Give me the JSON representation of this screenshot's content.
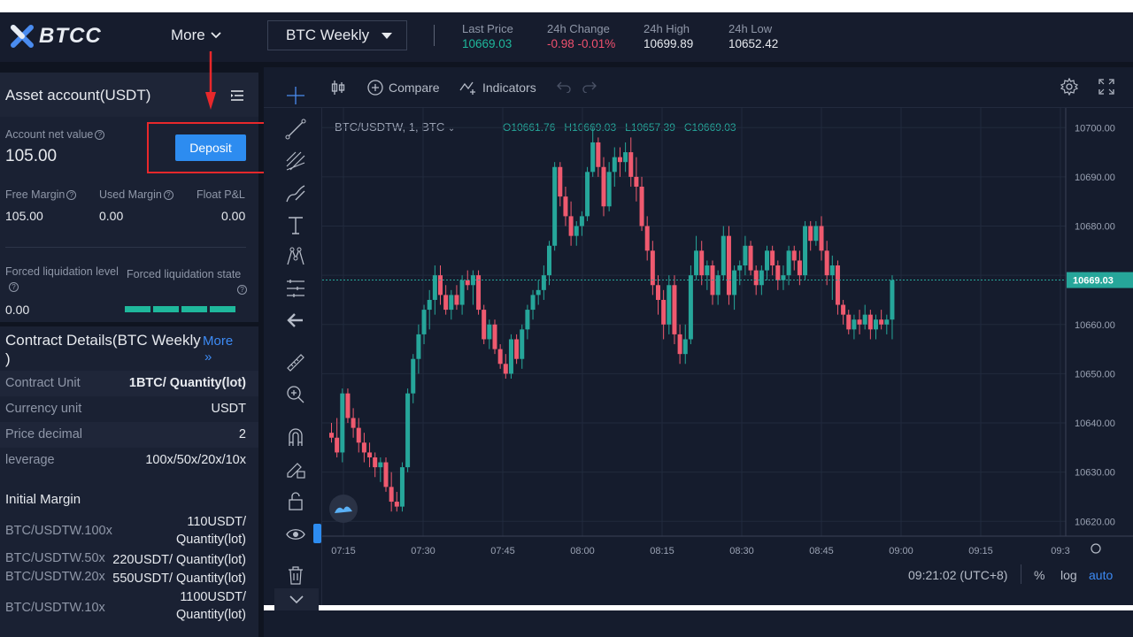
{
  "header": {
    "logo_text": "BTCC",
    "more_label": "More",
    "symbol": "BTC Weekly",
    "stats": [
      {
        "label": "Last Price",
        "value": "10669.03",
        "color": "#1fb89c"
      },
      {
        "label": "24h Change",
        "value": "-0.98 -0.01%",
        "color": "#f0506e"
      },
      {
        "label": "24h High",
        "value": "10699.89",
        "color": "#e6e9ee"
      },
      {
        "label": "24h Low",
        "value": "10652.42",
        "color": "#e6e9ee"
      }
    ]
  },
  "asset": {
    "title": "Asset account(USDT)",
    "net_value_label": "Account net value",
    "net_value": "105.00",
    "deposit_label": "Deposit",
    "free_margin_label": "Free Margin",
    "free_margin": "105.00",
    "used_margin_label": "Used Margin",
    "used_margin": "0.00",
    "float_pl_label": "Float P&L",
    "float_pl": "0.00",
    "forced_level_label": "Forced liquidation level",
    "forced_level": "0.00",
    "forced_state_label": "Forced liquidation state"
  },
  "contract": {
    "title": "Contract Details(BTC Weekly )",
    "more_label": "More",
    "rows": [
      {
        "k": "Contract Unit",
        "v": "1BTC/ Quantity(lot)"
      },
      {
        "k": "Currency unit",
        "v": "USDT"
      },
      {
        "k": "Price decimal",
        "v": "2"
      },
      {
        "k": "leverage",
        "v": "100x/50x/20x/10x"
      }
    ],
    "initial_margin_title": "Initial Margin",
    "margins": [
      {
        "k": "BTC/USDTW.100x",
        "v1": "110USDT/",
        "v2": "Quantity(lot)"
      },
      {
        "k": "BTC/USDTW.50x",
        "v1": "220USDT/ Quantity(lot)",
        "v2": ""
      },
      {
        "k": "BTC/USDTW.20x",
        "v1": "550USDT/ Quantity(lot)",
        "v2": ""
      },
      {
        "k": "BTC/USDTW.10x",
        "v1": "1100USDT/",
        "v2": "Quantity(lot)"
      }
    ]
  },
  "chart_toolbar": {
    "compare_label": "Compare",
    "indicators_label": "Indicators"
  },
  "chart_legend": {
    "symbol_label": "BTC/USDTW, 1, BTC",
    "open": "O10661.76",
    "high": "H10669.03",
    "low": "L10657.39",
    "close": "C10669.03"
  },
  "chart_footer": {
    "time": "09:21:02 (UTC+8)",
    "pct": "%",
    "log": "log",
    "auto": "auto"
  },
  "chart_data": {
    "type": "candlestick",
    "y_ticks": [
      "10700.00",
      "10690.00",
      "10680.00",
      "10670.00",
      "10660.00",
      "10650.00",
      "10640.00",
      "10630.00",
      "10620.00"
    ],
    "x_ticks": [
      "07:15",
      "07:30",
      "07:45",
      "08:00",
      "08:15",
      "08:30",
      "08:45",
      "09:00",
      "09:15",
      "09:3"
    ],
    "ylim": [
      10617,
      10704
    ],
    "last_price": "10669.03",
    "up_color": "#26a69a",
    "down_color": "#ef5a6f",
    "candles": [
      [
        10638,
        10640,
        10636,
        10637
      ],
      [
        10637,
        10641,
        10633,
        10634
      ],
      [
        10634,
        10647,
        10632,
        10646
      ],
      [
        10646,
        10647,
        10640,
        10641
      ],
      [
        10641,
        10643,
        10637,
        10639
      ],
      [
        10639,
        10641,
        10634,
        10636
      ],
      [
        10636,
        10638,
        10632,
        10634
      ],
      [
        10634,
        10636,
        10631,
        10633
      ],
      [
        10633,
        10634,
        10629,
        10631
      ],
      [
        10631,
        10633,
        10628,
        10632
      ],
      [
        10632,
        10633,
        10626,
        10627
      ],
      [
        10627,
        10630,
        10622,
        10624
      ],
      [
        10624,
        10626,
        10622,
        10623
      ],
      [
        10623,
        10632,
        10622,
        10631
      ],
      [
        10631,
        10647,
        10630,
        10646
      ],
      [
        10646,
        10654,
        10644,
        10653
      ],
      [
        10653,
        10660,
        10650,
        10658
      ],
      [
        10658,
        10664,
        10656,
        10663
      ],
      [
        10663,
        10667,
        10659,
        10665
      ],
      [
        10665,
        10672,
        10662,
        10670
      ],
      [
        10670,
        10672,
        10664,
        10666
      ],
      [
        10666,
        10668,
        10662,
        10663
      ],
      [
        10663,
        10667,
        10661,
        10666
      ],
      [
        10666,
        10668,
        10663,
        10664
      ],
      [
        10664,
        10670,
        10662,
        10669
      ],
      [
        10669,
        10671,
        10667,
        10668
      ],
      [
        10668,
        10671,
        10664,
        10670
      ],
      [
        10670,
        10671,
        10662,
        10663
      ],
      [
        10663,
        10664,
        10656,
        10657
      ],
      [
        10657,
        10661,
        10655,
        10660
      ],
      [
        10660,
        10661,
        10654,
        10655
      ],
      [
        10655,
        10656,
        10651,
        10652
      ],
      [
        10652,
        10654,
        10649,
        10650
      ],
      [
        10650,
        10658,
        10649,
        10657
      ],
      [
        10657,
        10658,
        10652,
        10653
      ],
      [
        10653,
        10660,
        10651,
        10659
      ],
      [
        10659,
        10664,
        10657,
        10663
      ],
      [
        10663,
        10667,
        10661,
        10666
      ],
      [
        10666,
        10669,
        10664,
        10667
      ],
      [
        10667,
        10672,
        10665,
        10670
      ],
      [
        10670,
        10677,
        10668,
        10676
      ],
      [
        10676,
        10693,
        10675,
        10692
      ],
      [
        10692,
        10693,
        10684,
        10686
      ],
      [
        10686,
        10688,
        10680,
        10682
      ],
      [
        10682,
        10685,
        10676,
        10678
      ],
      [
        10678,
        10681,
        10676,
        10680
      ],
      [
        10680,
        10683,
        10678,
        10682
      ],
      [
        10682,
        10692,
        10681,
        10691
      ],
      [
        10691,
        10700,
        10690,
        10697
      ],
      [
        10697,
        10698,
        10690,
        10692
      ],
      [
        10692,
        10694,
        10682,
        10684
      ],
      [
        10684,
        10693,
        10683,
        10691
      ],
      [
        10691,
        10696,
        10688,
        10694
      ],
      [
        10694,
        10696,
        10690,
        10693
      ],
      [
        10693,
        10697,
        10691,
        10695
      ],
      [
        10695,
        10698,
        10688,
        10690
      ],
      [
        10690,
        10694,
        10685,
        10688
      ],
      [
        10688,
        10690,
        10679,
        10680
      ],
      [
        10680,
        10682,
        10673,
        10675
      ],
      [
        10675,
        10677,
        10666,
        10668
      ],
      [
        10668,
        10670,
        10662,
        10665
      ],
      [
        10665,
        10667,
        10657,
        10660
      ],
      [
        10660,
        10670,
        10658,
        10668
      ],
      [
        10668,
        10670,
        10656,
        10658
      ],
      [
        10658,
        10660,
        10652,
        10654
      ],
      [
        10654,
        10660,
        10652,
        10657
      ],
      [
        10657,
        10672,
        10656,
        10670
      ],
      [
        10670,
        10678,
        10669,
        10675
      ],
      [
        10675,
        10677,
        10668,
        10670
      ],
      [
        10670,
        10673,
        10667,
        10672
      ],
      [
        10672,
        10673,
        10664,
        10666
      ],
      [
        10666,
        10671,
        10664,
        10670
      ],
      [
        10670,
        10680,
        10669,
        10678
      ],
      [
        10678,
        10680,
        10664,
        10666
      ],
      [
        10666,
        10672,
        10663,
        10671
      ],
      [
        10671,
        10673,
        10668,
        10672
      ],
      [
        10672,
        10678,
        10670,
        10676
      ],
      [
        10676,
        10677,
        10670,
        10671
      ],
      [
        10671,
        10672,
        10666,
        10668
      ],
      [
        10668,
        10672,
        10666,
        10671
      ],
      [
        10671,
        10676,
        10669,
        10675
      ],
      [
        10675,
        10676,
        10670,
        10672
      ],
      [
        10672,
        10673,
        10667,
        10669
      ],
      [
        10669,
        10672,
        10667,
        10670
      ],
      [
        10670,
        10676,
        10668,
        10675
      ],
      [
        10675,
        10676,
        10671,
        10673
      ],
      [
        10673,
        10675,
        10668,
        10670
      ],
      [
        10670,
        10681,
        10669,
        10680
      ],
      [
        10680,
        10681,
        10675,
        10677
      ],
      [
        10677,
        10681,
        10676,
        10680
      ],
      [
        10680,
        10682,
        10673,
        10675
      ],
      [
        10675,
        10677,
        10668,
        10670
      ],
      [
        10670,
        10674,
        10665,
        10672
      ],
      [
        10672,
        10673,
        10662,
        10664
      ],
      [
        10664,
        10665,
        10660,
        10662
      ],
      [
        10662,
        10663,
        10658,
        10659
      ],
      [
        10659,
        10662,
        10657,
        10661
      ],
      [
        10661,
        10663,
        10658,
        10660
      ],
      [
        10660,
        10664,
        10659,
        10662
      ],
      [
        10662,
        10663,
        10657,
        10659
      ],
      [
        10659,
        10662,
        10657,
        10661
      ],
      [
        10661,
        10663,
        10659,
        10660
      ],
      [
        10660,
        10662,
        10658,
        10661
      ],
      [
        10661,
        10670,
        10657,
        10669
      ]
    ]
  }
}
